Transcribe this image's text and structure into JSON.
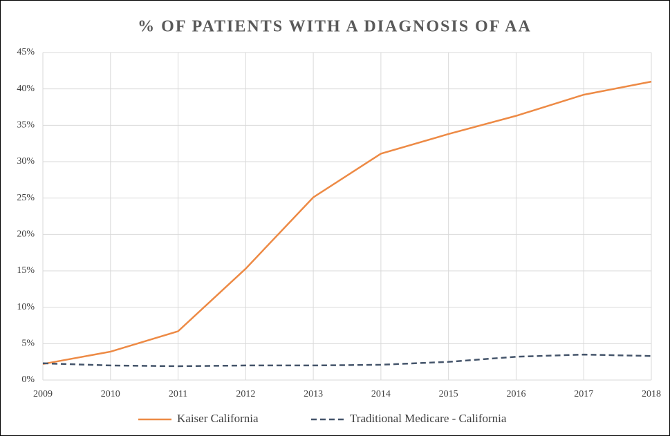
{
  "chart_data": {
    "type": "line",
    "title": "% OF PATIENTS WITH A DIAGNOSIS OF AA",
    "x": [
      2009,
      2010,
      2011,
      2012,
      2013,
      2014,
      2015,
      2016,
      2017,
      2018
    ],
    "series": [
      {
        "name": "Kaiser California",
        "color": "#ed8a45",
        "linestyle": "solid",
        "values": [
          2.2,
          3.9,
          6.7,
          15.3,
          25.1,
          31.1,
          33.8,
          36.3,
          39.2,
          41.0
        ]
      },
      {
        "name": "Traditional Medicare - California",
        "color": "#44546a",
        "linestyle": "dashed",
        "values": [
          2.3,
          2.0,
          1.9,
          2.0,
          2.0,
          2.1,
          2.5,
          3.2,
          3.5,
          3.3
        ]
      }
    ],
    "xlim": [
      2009,
      2018
    ],
    "xticks": [
      2009,
      2010,
      2011,
      2012,
      2013,
      2014,
      2015,
      2016,
      2017,
      2018
    ],
    "ylim": [
      0,
      45
    ],
    "yticks": [
      {
        "value": 0,
        "label": "0%"
      },
      {
        "value": 5,
        "label": "5%"
      },
      {
        "value": 10,
        "label": "10%"
      },
      {
        "value": 15,
        "label": "15%"
      },
      {
        "value": 20,
        "label": "20%"
      },
      {
        "value": 25,
        "label": "25%"
      },
      {
        "value": 30,
        "label": "30%"
      },
      {
        "value": 35,
        "label": "35%"
      },
      {
        "value": 40,
        "label": "40%"
      },
      {
        "value": 45,
        "label": "45%"
      }
    ],
    "grid": true,
    "legend": "bottom"
  }
}
